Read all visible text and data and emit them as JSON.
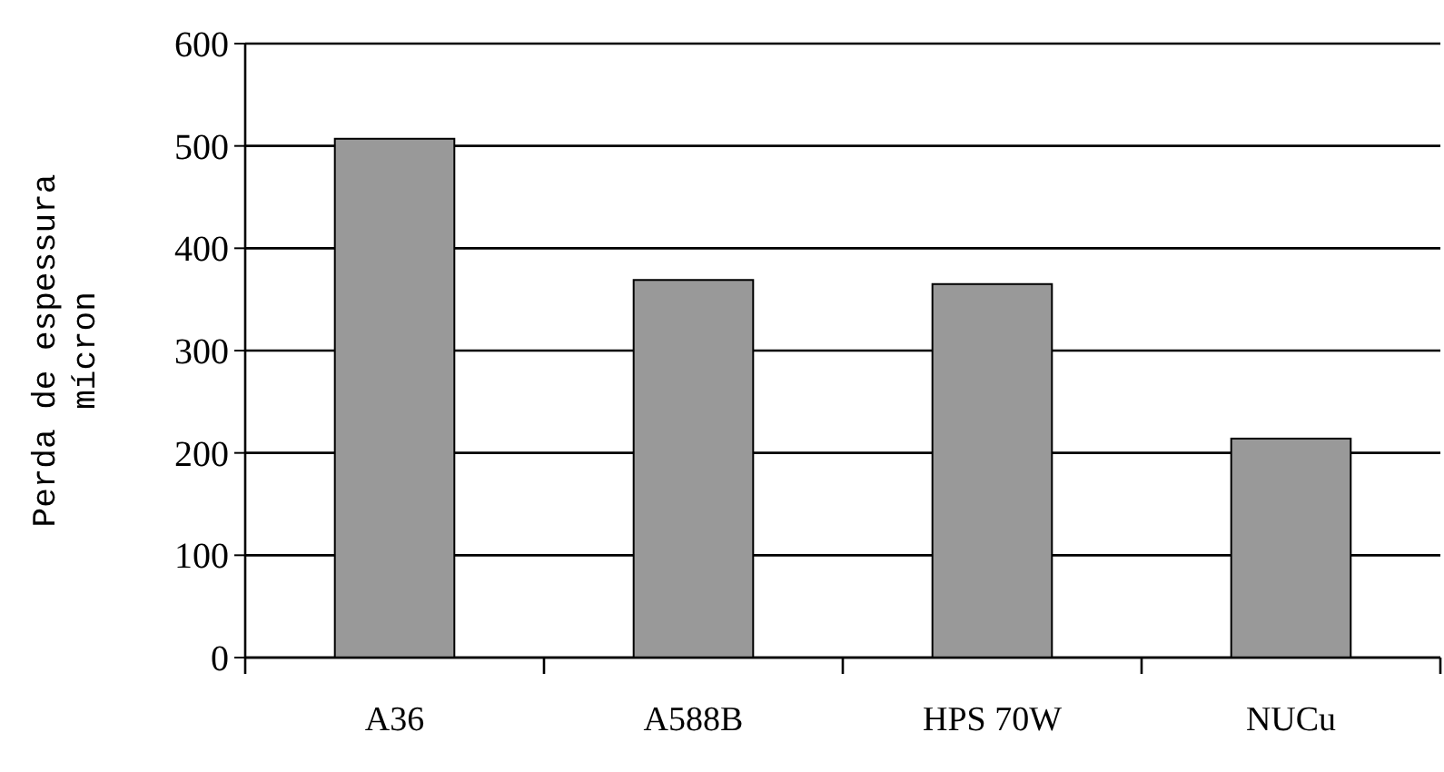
{
  "chart_data": {
    "type": "bar",
    "ylabel": "Perda de espessura\nmícron",
    "categories": [
      "A36",
      "A588B",
      "HPS 70W",
      "NUCu"
    ],
    "values": [
      507,
      369,
      365,
      214
    ],
    "color": "#999999",
    "ylim": [
      0,
      600
    ],
    "yticks": [
      0,
      100,
      200,
      300,
      400,
      500,
      600
    ],
    "grid": "y"
  }
}
